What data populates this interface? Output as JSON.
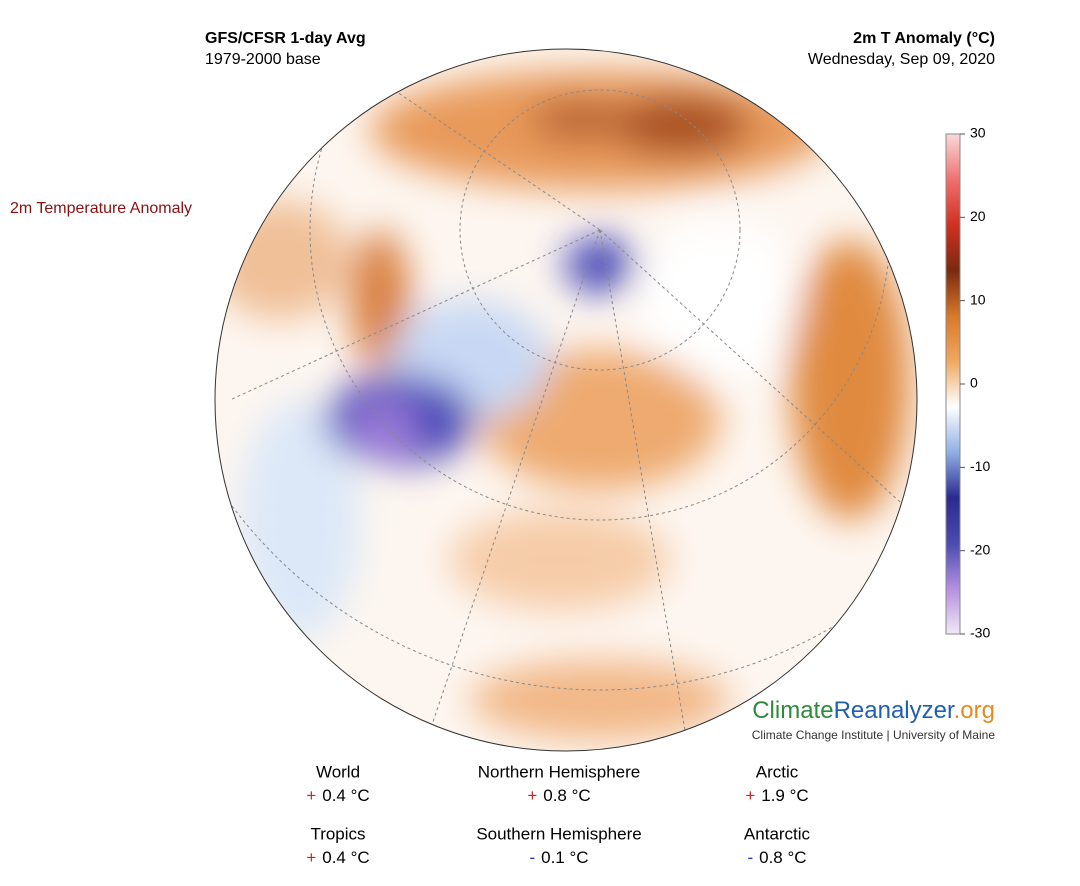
{
  "header": {
    "left_title": "GFS/CFSR 1-day Avg",
    "left_subtitle": "1979-2000 base",
    "right_title": "2m T Anomaly (°C)",
    "right_subtitle": "Wednesday, Sep 09, 2020"
  },
  "side_label": "2m Temperature Anomaly",
  "colorbar": {
    "lim": [
      -30,
      30
    ],
    "ticks": [
      30,
      20,
      10,
      0,
      -10,
      -20,
      -30
    ],
    "colors": [
      "#f0e8f5",
      "#b48fe0",
      "#4a4ab0",
      "#2a2a90",
      "#8fb0e6",
      "#ffffff",
      "#f0a860",
      "#d8782a",
      "#7a2a10",
      "#d03020",
      "#f07070",
      "#fadada"
    ]
  },
  "logo": {
    "part1": "Climate",
    "part2": "Reanalyzer",
    "part3": ".org",
    "subtitle": "Climate Change Institute | University of Maine"
  },
  "stats": [
    {
      "label": "World",
      "sign": "+",
      "value": "0.4 °C",
      "sign_color": "#d62020"
    },
    {
      "label": "Northern Hemisphere",
      "sign": "+",
      "value": "0.8 °C",
      "sign_color": "#d62020"
    },
    {
      "label": "Arctic",
      "sign": "+",
      "value": "1.9 °C",
      "sign_color": "#d62020"
    },
    {
      "label": "Tropics",
      "sign": "+",
      "value": "0.4 °C",
      "sign_color": "#d62020"
    },
    {
      "label": "Southern Hemisphere",
      "sign": "-",
      "value": "0.1 °C",
      "sign_color": "#2030b0"
    },
    {
      "label": "Antarctic",
      "sign": "-",
      "value": "0.8 °C",
      "sign_color": "#2030b0"
    }
  ]
}
